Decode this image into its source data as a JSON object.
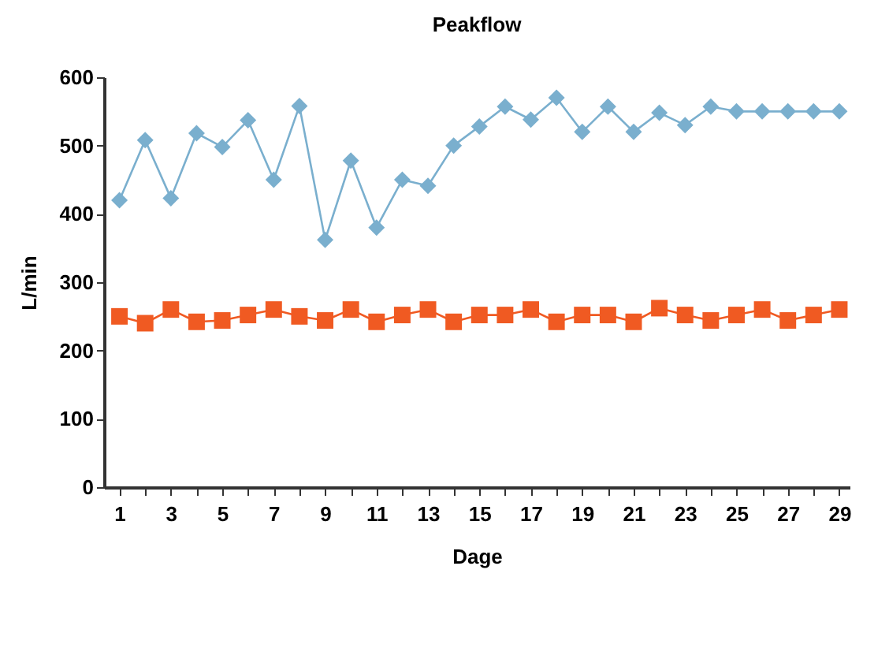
{
  "chart_data": {
    "type": "line",
    "title": "Peakflow",
    "xlabel": "Dage",
    "ylabel": "L/min",
    "x": [
      1,
      2,
      3,
      4,
      5,
      6,
      7,
      8,
      9,
      10,
      11,
      12,
      13,
      14,
      15,
      16,
      17,
      18,
      19,
      20,
      21,
      22,
      23,
      24,
      25,
      26,
      27,
      28,
      29
    ],
    "series": [
      {
        "color": "#7aafce",
        "marker": "diamond",
        "values": [
          420,
          508,
          423,
          518,
          498,
          537,
          450,
          558,
          362,
          478,
          380,
          450,
          441,
          500,
          528,
          557,
          538,
          570,
          520,
          557,
          520,
          548,
          530,
          557,
          550,
          550,
          550,
          550,
          550
        ]
      },
      {
        "color": "#f05a22",
        "marker": "square",
        "values": [
          250,
          240,
          260,
          242,
          244,
          252,
          260,
          250,
          244,
          260,
          242,
          252,
          260,
          242,
          252,
          252,
          260,
          242,
          252,
          252,
          242,
          262,
          252,
          244,
          252,
          260,
          244,
          252,
          260
        ]
      }
    ],
    "xlim": [
      0.4,
      29.4
    ],
    "xticks": [
      1,
      {
        "value": 2,
        "label": null
      },
      3,
      {
        "value": 4,
        "label": null
      },
      5,
      {
        "value": 6,
        "label": null
      },
      7,
      {
        "value": 8,
        "label": null
      },
      9,
      {
        "value": 10,
        "label": null
      },
      11,
      {
        "value": 12,
        "label": null
      },
      13,
      {
        "value": 14,
        "label": null
      },
      15,
      {
        "value": 16,
        "label": null
      },
      17,
      {
        "value": 18,
        "label": null
      },
      19,
      {
        "value": 20,
        "label": null
      },
      21,
      {
        "value": 22,
        "label": null
      },
      23,
      {
        "value": 24,
        "label": null
      },
      25,
      {
        "value": 26,
        "label": null
      },
      27,
      {
        "value": 28,
        "label": null
      },
      29
    ],
    "ylim": [
      0,
      600
    ],
    "yticks": [
      0,
      100,
      200,
      300,
      400,
      500,
      600
    ],
    "grid": false,
    "line_style": "solid"
  }
}
